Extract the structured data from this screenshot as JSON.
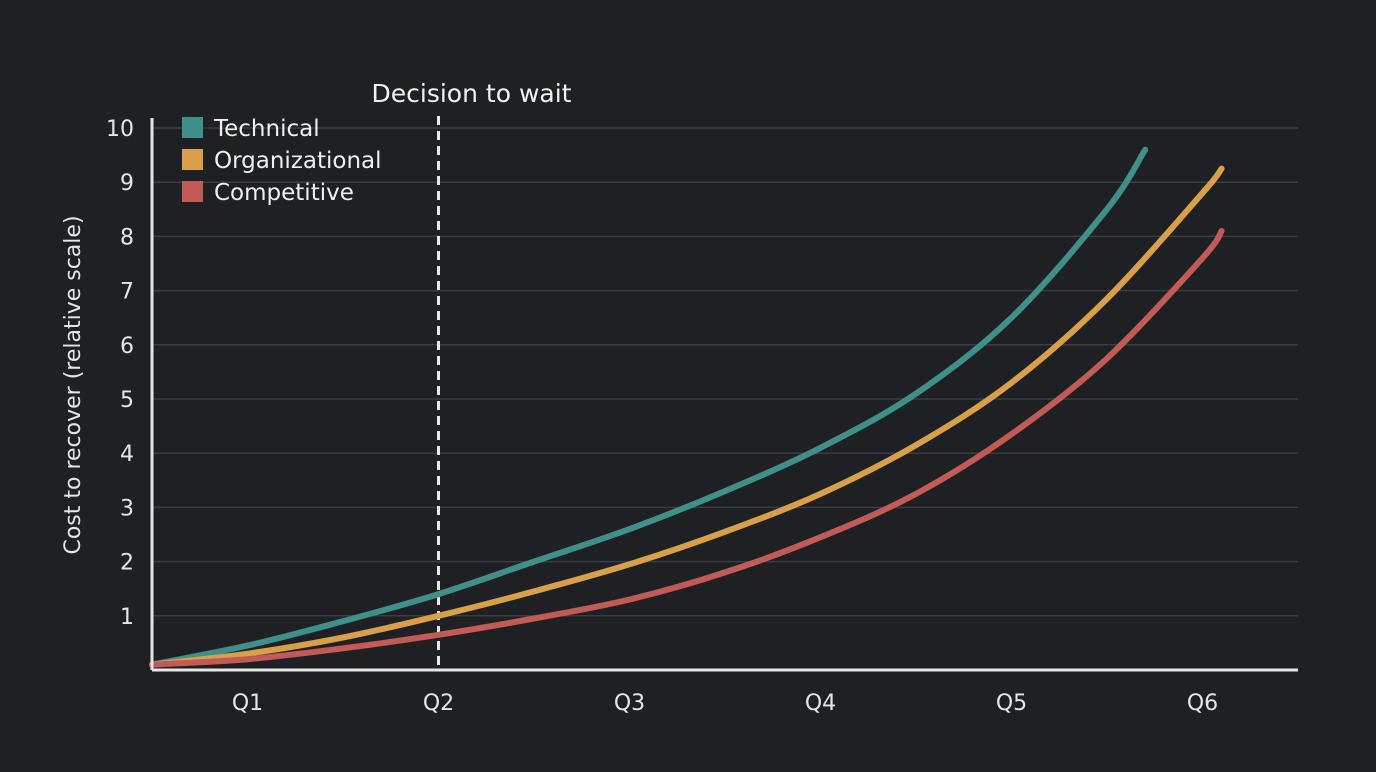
{
  "chart_data": {
    "type": "line",
    "title": "",
    "xlabel": "",
    "ylabel": "Cost to recover (relative scale)",
    "categories": [
      "Q1",
      "Q2",
      "Q3",
      "Q4",
      "Q5",
      "Q6"
    ],
    "xlim": [
      0.5,
      6.5
    ],
    "ylim": [
      0,
      10
    ],
    "yticks": [
      "1",
      "2",
      "3",
      "4",
      "5",
      "6",
      "7",
      "8",
      "9",
      "10"
    ],
    "grid": true,
    "legend_position": "top-left",
    "annotation": {
      "label": "Decision to wait",
      "x": 2,
      "style": "dashed-vertical-line"
    },
    "series": [
      {
        "name": "Technical",
        "color": "#3f9088",
        "x": [
          0.5,
          1.0,
          1.5,
          2.0,
          2.5,
          3.0,
          3.5,
          4.0,
          4.5,
          5.0,
          5.5,
          5.7
        ],
        "values": [
          0.1,
          0.45,
          0.9,
          1.4,
          2.0,
          2.6,
          3.3,
          4.1,
          5.1,
          6.5,
          8.5,
          9.6
        ]
      },
      {
        "name": "Organizational",
        "color": "#d9a04a",
        "x": [
          0.5,
          1.0,
          1.5,
          2.0,
          2.5,
          3.0,
          3.5,
          4.0,
          4.5,
          5.0,
          5.5,
          6.0,
          6.1
        ],
        "values": [
          0.1,
          0.3,
          0.6,
          1.0,
          1.45,
          1.95,
          2.55,
          3.25,
          4.15,
          5.3,
          6.85,
          8.8,
          9.25
        ]
      },
      {
        "name": "Competitive",
        "color": "#c25a55",
        "x": [
          0.5,
          1.0,
          1.5,
          2.0,
          2.5,
          3.0,
          3.5,
          4.0,
          4.5,
          5.0,
          5.5,
          6.0,
          6.1
        ],
        "values": [
          0.1,
          0.2,
          0.4,
          0.65,
          0.95,
          1.3,
          1.8,
          2.45,
          3.25,
          4.35,
          5.75,
          7.6,
          8.1
        ]
      }
    ]
  }
}
